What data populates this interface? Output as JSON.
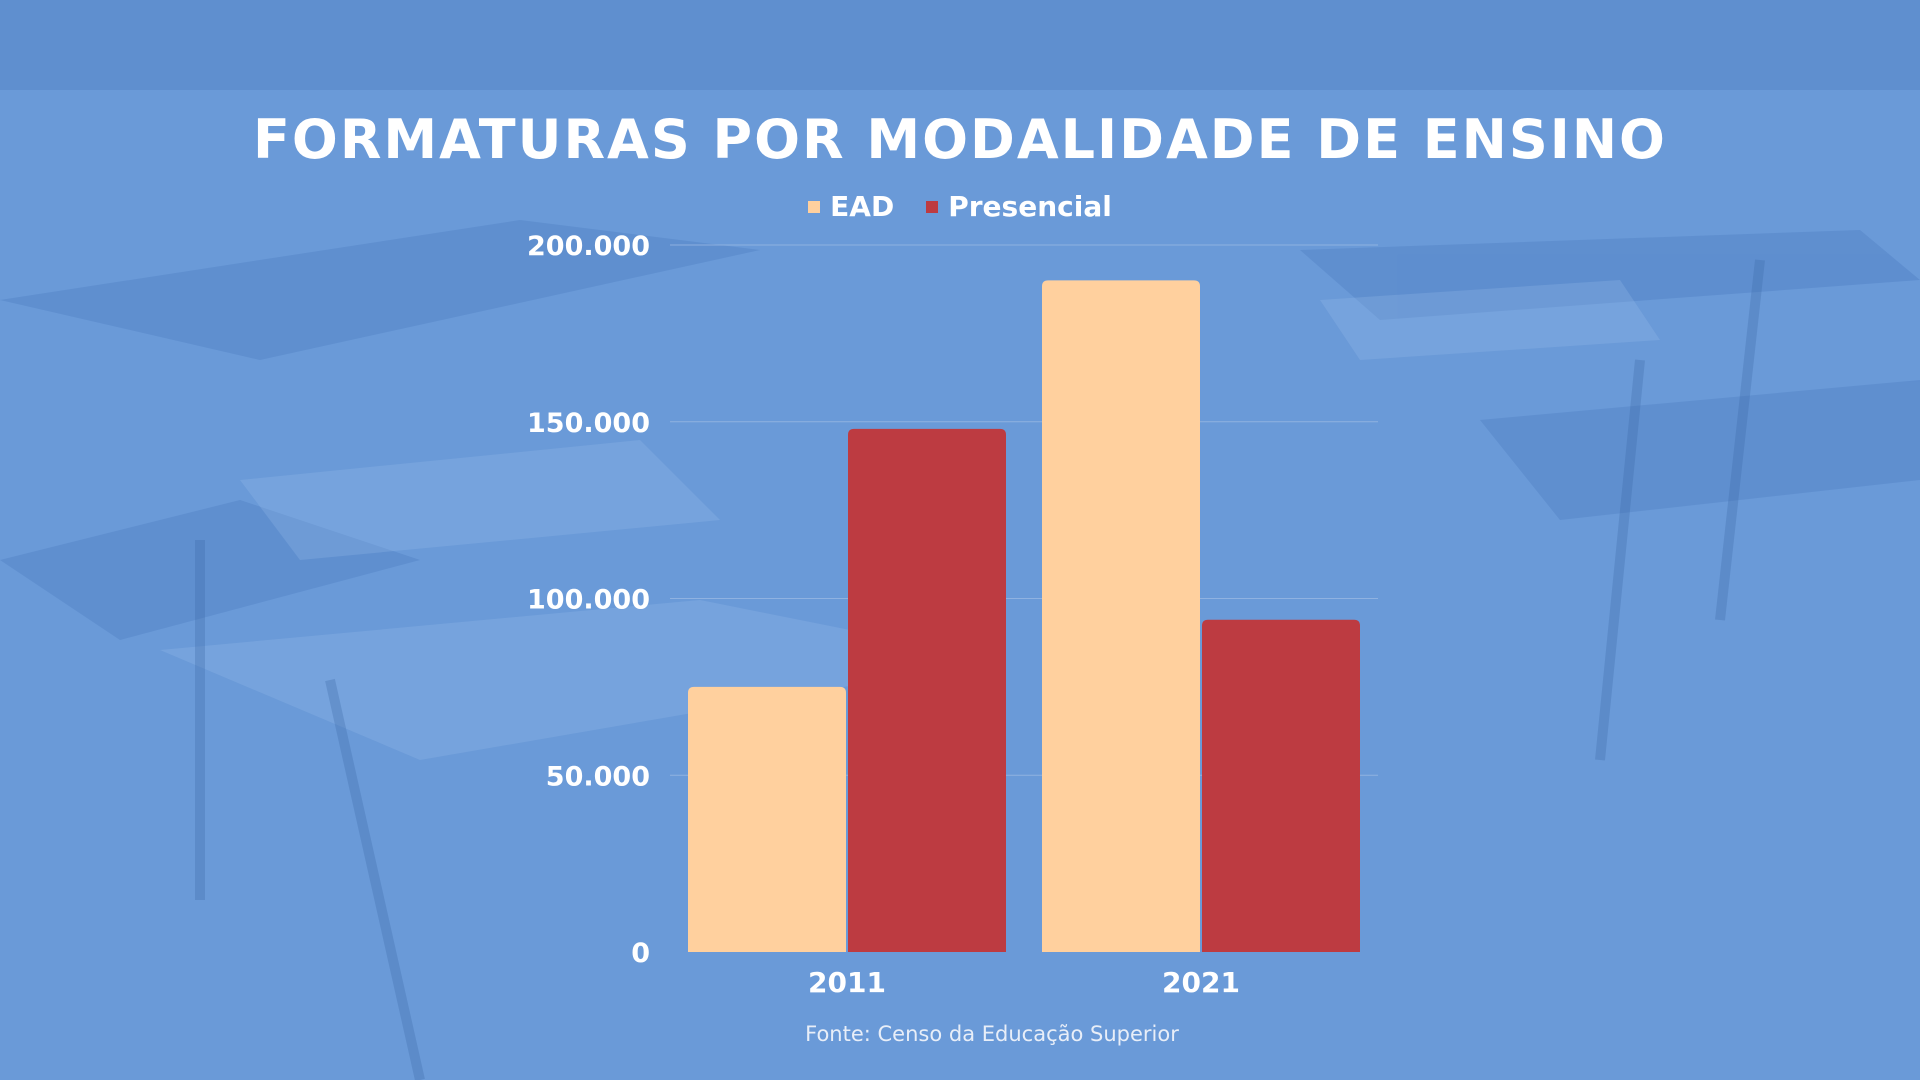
{
  "colors": {
    "ead": "#ffd09e",
    "presencial": "#bd3b41",
    "background": "#6a9ad8",
    "text": "#ffffff"
  },
  "background_image": "classroom-desks-photo",
  "chart_data": {
    "type": "bar",
    "title": "FORMATURAS POR MODALIDADE DE ENSINO",
    "categories": [
      "2011",
      "2021"
    ],
    "series": [
      {
        "name": "EAD",
        "values": [
          75000,
          190000
        ]
      },
      {
        "name": "Presencial",
        "values": [
          148000,
          94000
        ]
      }
    ],
    "yticks": [
      0,
      50000,
      100000,
      150000,
      200000
    ],
    "ytick_labels": [
      "0",
      "50.000",
      "100.000",
      "150.000",
      "200.000"
    ],
    "ylim": [
      0,
      200000
    ],
    "grid": true,
    "legend_position": "top-center",
    "source": "Fonte: Censo da Educação Superior"
  }
}
